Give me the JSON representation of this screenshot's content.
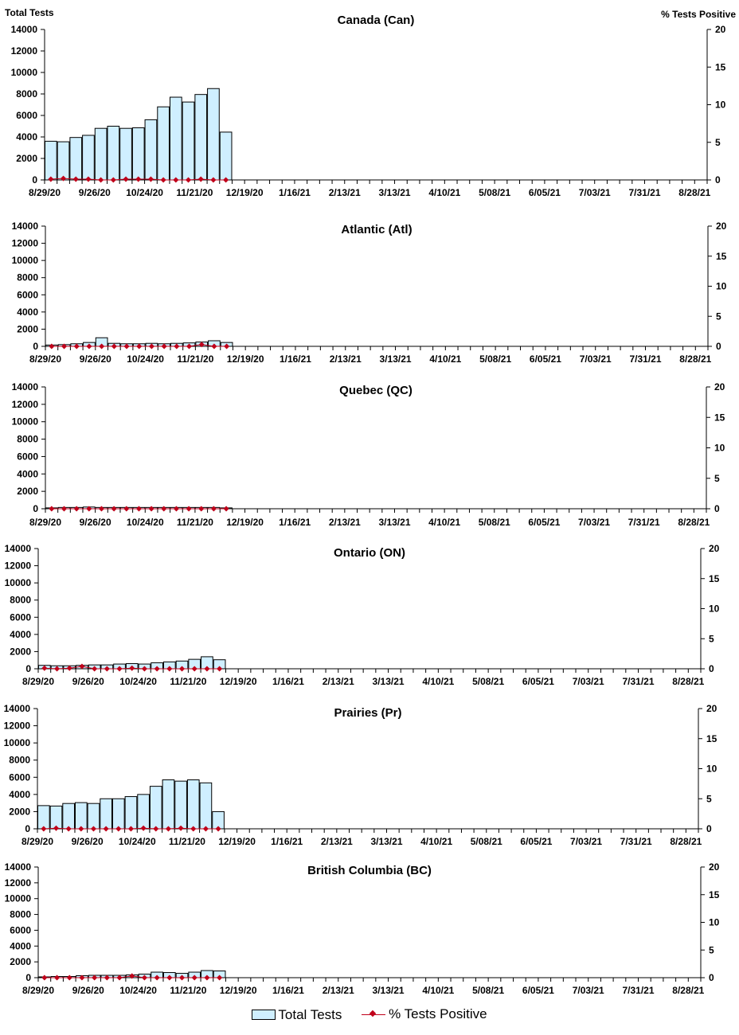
{
  "left_axis_title": "Total Tests",
  "right_axis_title": "% Tests Positive",
  "legend": {
    "bar_label": "Total Tests",
    "line_label": "% Tests Positive"
  },
  "colors": {
    "bar_fill": "#cfefff",
    "bar_stroke": "#000000",
    "line": "#c0001a"
  },
  "chart_data": [
    {
      "type": "bar",
      "title": "Canada (Can)",
      "x_tick_labels": [
        "8/29/20",
        "9/26/20",
        "10/24/20",
        "11/21/20",
        "12/19/20",
        "1/16/21",
        "2/13/21",
        "3/13/21",
        "4/10/21",
        "5/08/21",
        "6/05/21",
        "7/03/21",
        "7/31/21",
        "8/28/21"
      ],
      "y_ticks": [
        0,
        2000,
        4000,
        6000,
        8000,
        10000,
        12000,
        14000
      ],
      "y2_ticks": [
        0,
        5,
        10,
        15,
        20
      ],
      "ylim": [
        0,
        14000
      ],
      "y2lim": [
        0,
        20
      ],
      "series": [
        {
          "name": "Total Tests",
          "type": "bar",
          "values": [
            3600,
            3550,
            3950,
            4150,
            4800,
            5000,
            4800,
            4850,
            5600,
            6800,
            7700,
            7250,
            7950,
            8500,
            4450
          ]
        },
        {
          "name": "% Tests Positive",
          "type": "line",
          "values": [
            0.1,
            0.2,
            0.1,
            0.1,
            0.0,
            0.0,
            0.1,
            0.1,
            0.1,
            0.0,
            0.0,
            0.0,
            0.1,
            0.0,
            0.0
          ]
        }
      ]
    },
    {
      "type": "bar",
      "title": "Atlantic (Atl)",
      "x_tick_labels": [
        "8/29/20",
        "9/26/20",
        "10/24/20",
        "11/21/20",
        "12/19/20",
        "1/16/21",
        "2/13/21",
        "3/13/21",
        "4/10/21",
        "5/08/21",
        "6/05/21",
        "7/03/21",
        "7/31/21",
        "8/28/21"
      ],
      "y_ticks": [
        0,
        2000,
        4000,
        6000,
        8000,
        10000,
        12000,
        14000
      ],
      "y2_ticks": [
        0,
        5,
        10,
        15,
        20
      ],
      "ylim": [
        0,
        14000
      ],
      "y2lim": [
        0,
        20
      ],
      "series": [
        {
          "name": "Total Tests",
          "type": "bar",
          "values": [
            150,
            200,
            300,
            450,
            1000,
            350,
            300,
            300,
            350,
            300,
            350,
            400,
            500,
            650,
            450
          ]
        },
        {
          "name": "% Tests Positive",
          "type": "line",
          "values": [
            0.0,
            0.0,
            0.0,
            0.0,
            0.0,
            0.0,
            0.0,
            0.0,
            0.0,
            0.0,
            0.0,
            0.0,
            0.3,
            0.0,
            0.0
          ]
        }
      ]
    },
    {
      "type": "bar",
      "title": "Quebec (QC)",
      "x_tick_labels": [
        "8/29/20",
        "9/26/20",
        "10/24/20",
        "11/21/20",
        "12/19/20",
        "1/16/21",
        "2/13/21",
        "3/13/21",
        "4/10/21",
        "5/08/21",
        "6/05/21",
        "7/03/21",
        "7/31/21",
        "8/28/21"
      ],
      "y_ticks": [
        0,
        2000,
        4000,
        6000,
        8000,
        10000,
        12000,
        14000
      ],
      "y2_ticks": [
        0,
        5,
        10,
        15,
        20
      ],
      "ylim": [
        0,
        14000
      ],
      "y2lim": [
        0,
        20
      ],
      "series": [
        {
          "name": "Total Tests",
          "type": "bar",
          "values": [
            100,
            150,
            150,
            200,
            150,
            150,
            150,
            150,
            150,
            150,
            150,
            150,
            150,
            150,
            100
          ]
        },
        {
          "name": "% Tests Positive",
          "type": "line",
          "values": [
            0.0,
            0.0,
            0.0,
            0.0,
            0.0,
            0.0,
            0.0,
            0.0,
            0.0,
            0.0,
            0.0,
            0.0,
            0.0,
            0.0,
            0.0
          ]
        }
      ]
    },
    {
      "type": "bar",
      "title": "Ontario (ON)",
      "x_tick_labels": [
        "8/29/20",
        "9/26/20",
        "10/24/20",
        "11/21/20",
        "12/19/20",
        "1/16/21",
        "2/13/21",
        "3/13/21",
        "4/10/21",
        "5/08/21",
        "6/05/21",
        "7/03/21",
        "7/31/21",
        "8/28/21"
      ],
      "y_ticks": [
        0,
        2000,
        4000,
        6000,
        8000,
        10000,
        12000,
        14000
      ],
      "y2_ticks": [
        0,
        5,
        10,
        15,
        20
      ],
      "ylim": [
        0,
        14000
      ],
      "y2lim": [
        0,
        20
      ],
      "series": [
        {
          "name": "Total Tests",
          "type": "bar",
          "values": [
            400,
            350,
            350,
            400,
            450,
            450,
            550,
            600,
            550,
            700,
            800,
            900,
            1100,
            1400,
            1050
          ]
        },
        {
          "name": "% Tests Positive",
          "type": "line",
          "values": [
            0.1,
            0.0,
            0.1,
            0.4,
            0.0,
            0.0,
            0.0,
            0.1,
            0.0,
            0.0,
            0.0,
            0.0,
            0.0,
            0.0,
            0.0
          ]
        }
      ]
    },
    {
      "type": "bar",
      "title": "Prairies (Pr)",
      "x_tick_labels": [
        "8/29/20",
        "9/26/20",
        "10/24/20",
        "11/21/20",
        "12/19/20",
        "1/16/21",
        "2/13/21",
        "3/13/21",
        "4/10/21",
        "5/08/21",
        "6/05/21",
        "7/03/21",
        "7/31/21",
        "8/28/21"
      ],
      "y_ticks": [
        0,
        2000,
        4000,
        6000,
        8000,
        10000,
        12000,
        14000
      ],
      "y2_ticks": [
        0,
        5,
        10,
        15,
        20
      ],
      "ylim": [
        0,
        14000
      ],
      "y2lim": [
        0,
        20
      ],
      "series": [
        {
          "name": "Total Tests",
          "type": "bar",
          "values": [
            2700,
            2650,
            2950,
            3050,
            2950,
            3500,
            3500,
            3750,
            4000,
            4950,
            5700,
            5550,
            5700,
            5350,
            2000
          ]
        },
        {
          "name": "% Tests Positive",
          "type": "line",
          "values": [
            0.0,
            0.1,
            0.0,
            0.0,
            0.0,
            0.0,
            0.0,
            0.0,
            0.1,
            0.0,
            0.0,
            0.1,
            0.0,
            0.0,
            0.0
          ]
        }
      ]
    },
    {
      "type": "bar",
      "title": "British Columbia (BC)",
      "x_tick_labels": [
        "8/29/20",
        "9/26/20",
        "10/24/20",
        "11/21/20",
        "12/19/20",
        "1/16/21",
        "2/13/21",
        "3/13/21",
        "4/10/21",
        "5/08/21",
        "6/05/21",
        "7/03/21",
        "7/31/21",
        "8/28/21"
      ],
      "y_ticks": [
        0,
        2000,
        4000,
        6000,
        8000,
        10000,
        12000,
        14000
      ],
      "y2_ticks": [
        0,
        5,
        10,
        15,
        20
      ],
      "ylim": [
        0,
        14000
      ],
      "y2lim": [
        0,
        20
      ],
      "series": [
        {
          "name": "Total Tests",
          "type": "bar",
          "values": [
            100,
            150,
            150,
            250,
            300,
            300,
            300,
            350,
            450,
            700,
            650,
            550,
            700,
            900,
            850
          ]
        },
        {
          "name": "% Tests Positive",
          "type": "line",
          "values": [
            0.0,
            0.0,
            0.0,
            0.0,
            0.0,
            0.0,
            0.0,
            0.3,
            0.0,
            0.0,
            0.0,
            0.0,
            0.0,
            0.0,
            0.0
          ]
        }
      ]
    }
  ]
}
